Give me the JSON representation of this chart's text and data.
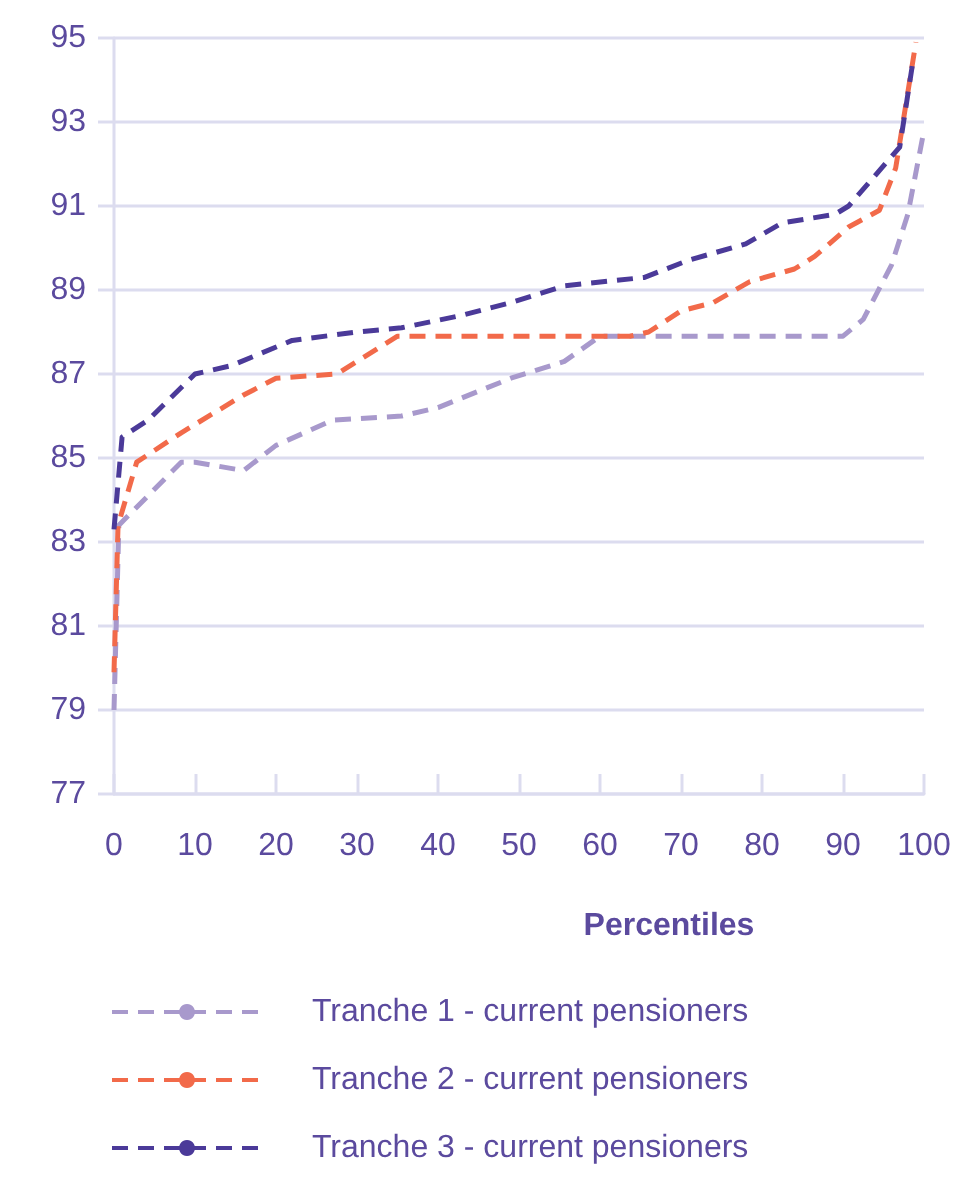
{
  "chart_data": {
    "type": "line",
    "xlabel": "Percentiles",
    "xlim": [
      0,
      100
    ],
    "xticks": [
      0,
      10,
      20,
      30,
      40,
      50,
      60,
      70,
      80,
      90,
      100
    ],
    "ylim": [
      77,
      95
    ],
    "yticks": [
      77,
      79,
      81,
      83,
      85,
      87,
      89,
      91,
      93,
      95
    ],
    "grid": "y",
    "legend": "bottom",
    "marker": "none",
    "line_style": "dashed",
    "series": [
      {
        "name": "Tranche 1 - current pensioners",
        "color": "#a899cc",
        "x": [
          0,
          0.6,
          8.3,
          10,
          16,
          20,
          27,
          35.5,
          40,
          49,
          55.6,
          60,
          70,
          80,
          90,
          92.5,
          96,
          98,
          100
        ],
        "values": [
          79.0,
          83.4,
          84.9,
          84.9,
          84.7,
          85.3,
          85.9,
          86.0,
          86.2,
          86.9,
          87.3,
          87.9,
          87.9,
          87.9,
          87.9,
          88.3,
          89.6,
          90.8,
          92.8
        ]
      },
      {
        "name": "Tranche 2 - current pensioners",
        "color": "#f26a4a",
        "x": [
          0,
          0.5,
          2.8,
          8.3,
          16,
          20,
          27.5,
          35,
          48.5,
          63.7,
          66,
          70,
          74,
          78.5,
          84,
          86.5,
          90.7,
          94.5,
          96.5,
          99
        ],
        "values": [
          79.9,
          83.4,
          84.9,
          85.6,
          86.5,
          86.9,
          87.0,
          87.9,
          87.9,
          87.9,
          88.0,
          88.5,
          88.7,
          89.2,
          89.5,
          89.8,
          90.5,
          90.9,
          91.9,
          94.9
        ]
      },
      {
        "name": "Tranche 3 - current pensioners",
        "color": "#4b3a99",
        "x": [
          0,
          1,
          4.2,
          10,
          14.5,
          22,
          30,
          35.5,
          43,
          49,
          55.6,
          65.5,
          70.8,
          78,
          82.5,
          89,
          90.7,
          97,
          98.6
        ],
        "values": [
          83.3,
          85.5,
          85.9,
          87.0,
          87.2,
          87.8,
          88.0,
          88.1,
          88.4,
          88.7,
          89.1,
          89.3,
          89.7,
          90.1,
          90.6,
          90.8,
          91.0,
          92.4,
          94.4
        ]
      }
    ]
  }
}
